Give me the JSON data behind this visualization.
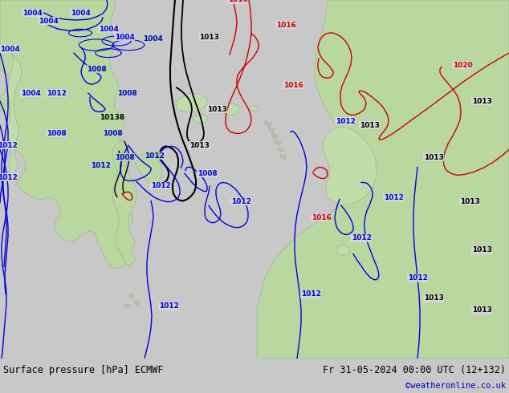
{
  "title_left": "Surface pressure [hPa] ECMWF",
  "title_right": "Fr 31-05-2024 00:00 UTC (12+132)",
  "watermark": "©weatheronline.co.uk",
  "ocean_color": "#d8d8dc",
  "land_color": "#b8d8a0",
  "land_color2": "#c0dca8",
  "footer_bg": "#c8c8c8",
  "fig_width": 6.34,
  "fig_height": 4.9,
  "dpi": 100
}
